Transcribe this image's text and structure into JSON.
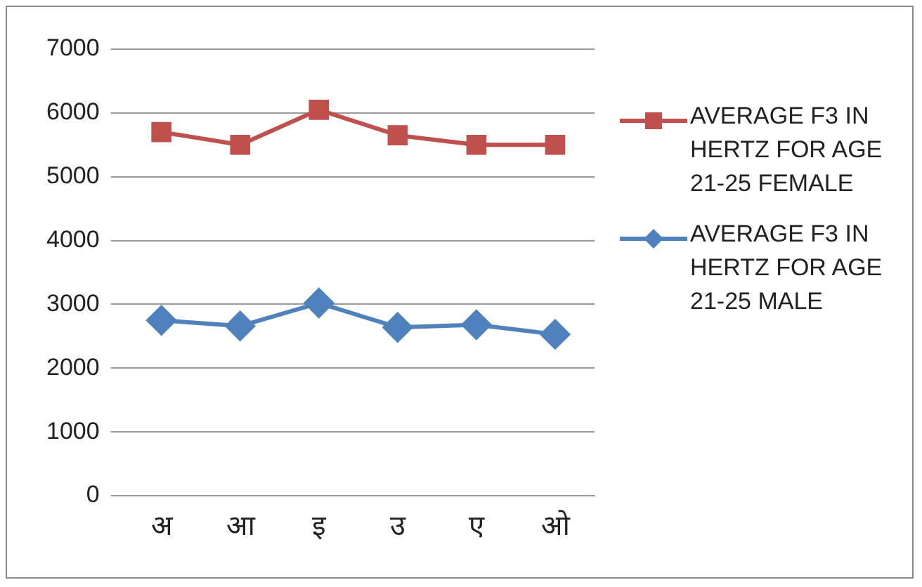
{
  "chart_data": {
    "type": "line",
    "categories": [
      "अ",
      "आ",
      "इ",
      "उ",
      "ए",
      "ओ"
    ],
    "series": [
      {
        "name": "AVERAGE F3 IN HERTZ FOR AGE 21-25 FEMALE",
        "color": "#c0504d",
        "marker": "square",
        "values": [
          5700,
          5500,
          6050,
          5650,
          5500,
          5500
        ]
      },
      {
        "name": "AVERAGE F3 IN HERTZ FOR AGE 21-25 MALE",
        "color": "#4f81bd",
        "marker": "diamond",
        "values": [
          2750,
          2660,
          3020,
          2640,
          2680,
          2530
        ]
      }
    ],
    "ylim": [
      0,
      7000
    ],
    "yticks": [
      0,
      1000,
      2000,
      3000,
      4000,
      5000,
      6000,
      7000
    ],
    "grid": "y",
    "legend": "right"
  }
}
